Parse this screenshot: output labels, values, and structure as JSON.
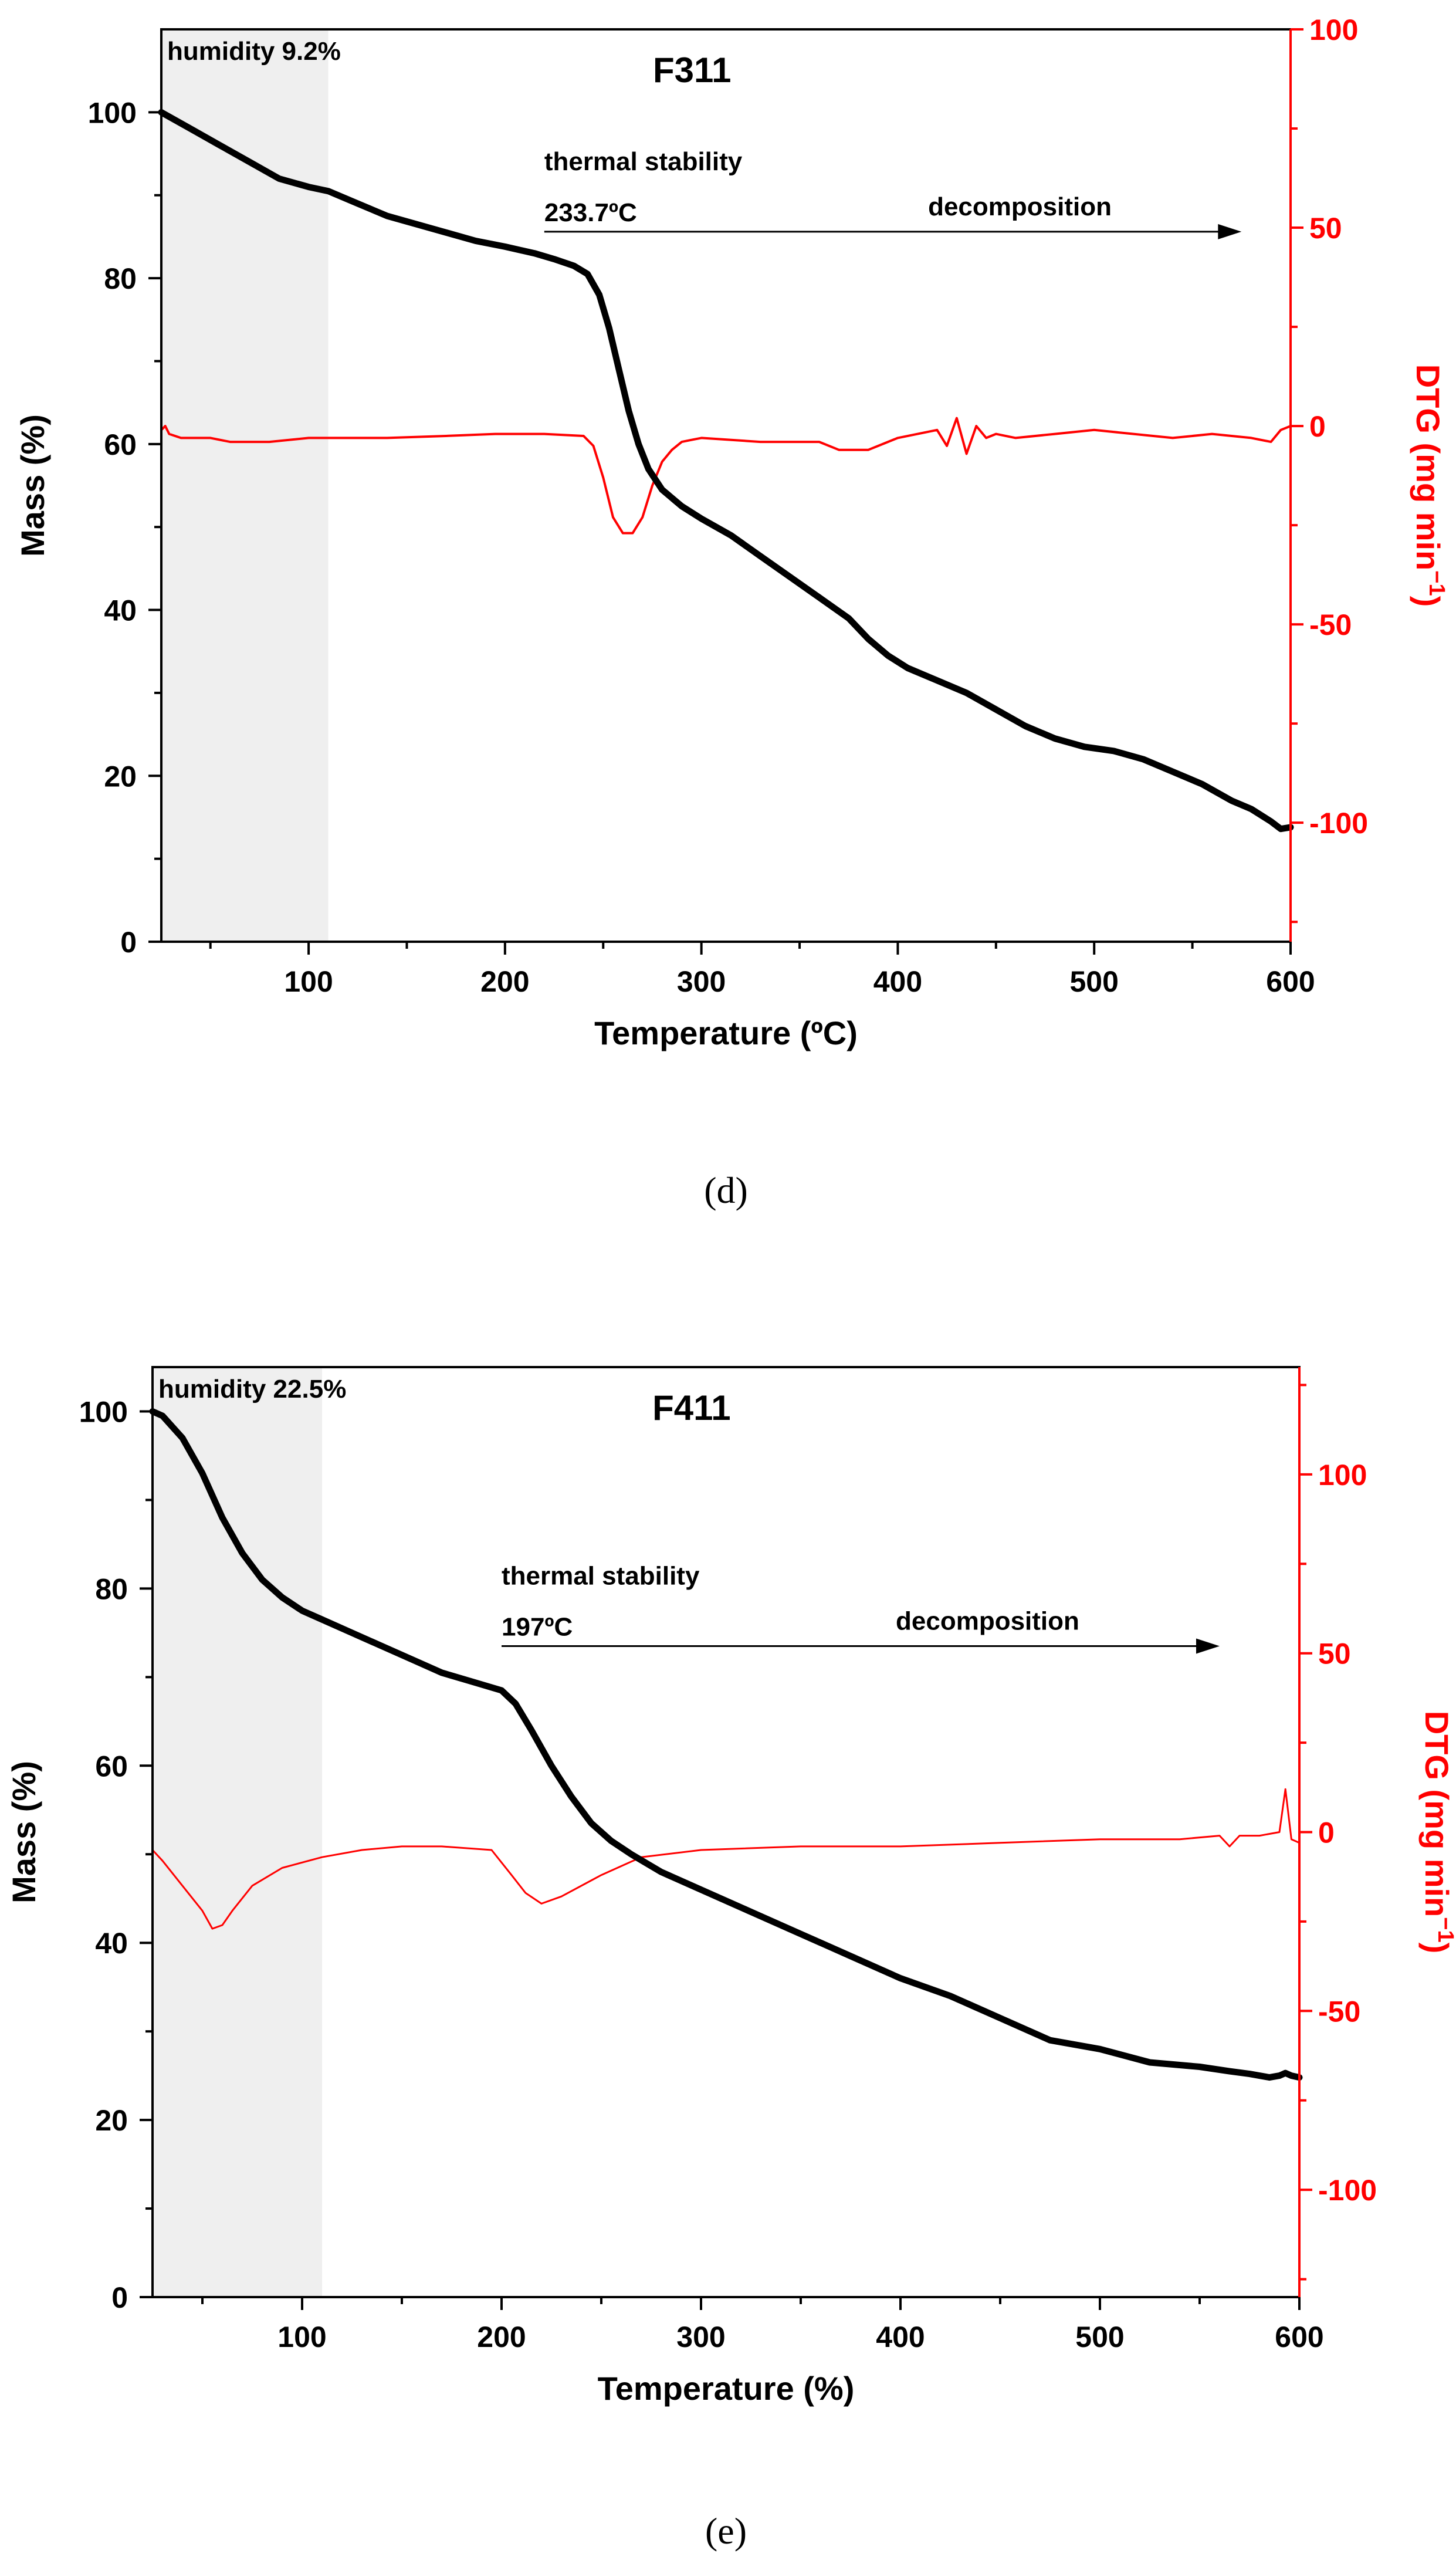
{
  "colors": {
    "mass": "#000000",
    "dtg": "#ff0000",
    "humidity_band": "#efefef"
  },
  "chart_data": [
    {
      "type": "line",
      "panel": "d",
      "title": "F311",
      "caption": "(d)",
      "xlabel": "Temperature (ºC)",
      "ylabel": "Mass (%)",
      "y2label": "DTG (mg min",
      "y2label_sup": "−1",
      "y2label_close": ")",
      "xlim": [
        25,
        600
      ],
      "ylim": [
        0,
        110
      ],
      "y2lim": [
        -130,
        100
      ],
      "xticks": [
        100,
        200,
        300,
        400,
        500,
        600
      ],
      "xminor": [
        50,
        100,
        150,
        200,
        250,
        300,
        350,
        400,
        450,
        500,
        550,
        600
      ],
      "yticks": [
        0,
        20,
        40,
        60,
        80,
        100
      ],
      "yminor": [
        10,
        30,
        50,
        70,
        90
      ],
      "y2ticks": [
        -100,
        -50,
        0,
        50,
        100
      ],
      "y2minor": [
        -125,
        -75,
        -25,
        25,
        75
      ],
      "humidity_band": {
        "from": 25,
        "to": 110,
        "label": "humidity 9.2%"
      },
      "annotations": {
        "stability_label": "thermal stability",
        "onset_label": "233.7ºC",
        "decomposition_label": "decomposition",
        "arrow_from": 220,
        "arrow_to": 575,
        "arrow_y": 85.6
      },
      "series": [
        {
          "name": "Mass",
          "axis": "left",
          "x": [
            25,
            40,
            55,
            70,
            85,
            100,
            110,
            125,
            140,
            155,
            170,
            185,
            200,
            215,
            225,
            235,
            242,
            248,
            253,
            258,
            263,
            268,
            273,
            280,
            290,
            300,
            315,
            330,
            345,
            360,
            375,
            385,
            395,
            405,
            420,
            435,
            450,
            465,
            480,
            495,
            510,
            525,
            540,
            555,
            570,
            580,
            590,
            595,
            600
          ],
          "values": [
            100,
            98,
            96,
            94,
            92,
            91,
            90.5,
            89,
            87.5,
            86.5,
            85.5,
            84.5,
            83.8,
            83,
            82.3,
            81.5,
            80.5,
            78,
            74,
            69,
            64,
            60,
            57,
            54.5,
            52.5,
            51,
            49,
            46.5,
            44,
            41.5,
            39,
            36.5,
            34.5,
            33,
            31.5,
            30,
            28,
            26,
            24.5,
            23.5,
            23,
            22,
            20.5,
            19,
            17,
            16,
            14.5,
            13.6,
            13.8
          ]
        },
        {
          "name": "DTG",
          "axis": "right",
          "x": [
            25,
            27,
            29,
            35,
            50,
            60,
            80,
            100,
            115,
            140,
            170,
            195,
            220,
            240,
            245,
            250,
            255,
            260,
            265,
            270,
            275,
            280,
            285,
            290,
            295,
            300,
            330,
            360,
            370,
            385,
            400,
            420,
            425,
            430,
            435,
            440,
            445,
            450,
            460,
            480,
            500,
            520,
            540,
            560,
            580,
            590,
            595,
            600
          ],
          "values": [
            -1,
            0,
            -2,
            -3,
            -3,
            -4,
            -4,
            -3,
            -3,
            -3,
            -2.5,
            -2,
            -2,
            -2.5,
            -5,
            -13,
            -23,
            -27,
            -27,
            -23,
            -15,
            -9,
            -6,
            -4,
            -3.5,
            -3,
            -4,
            -4,
            -6,
            -6,
            -3,
            -1,
            -5,
            2,
            -7,
            0,
            -3,
            -2,
            -3,
            -2,
            -1,
            -2,
            -3,
            -2,
            -3,
            -4,
            -1,
            0
          ]
        }
      ]
    },
    {
      "type": "line",
      "panel": "e",
      "title": "F411",
      "caption": "(e)",
      "xlabel": "Temperature (%)",
      "ylabel": "Mass (%)",
      "y2label": "DTG (mg min",
      "y2label_sup": "−1",
      "y2label_close": ")",
      "xlim": [
        25,
        600
      ],
      "ylim": [
        0,
        105
      ],
      "y2lim": [
        -130,
        130
      ],
      "xticks": [
        100,
        200,
        300,
        400,
        500,
        600
      ],
      "xminor": [
        50,
        100,
        150,
        200,
        250,
        300,
        350,
        400,
        450,
        500,
        550,
        600
      ],
      "yticks": [
        0,
        20,
        40,
        60,
        80,
        100
      ],
      "yminor": [
        10,
        30,
        50,
        70,
        90
      ],
      "y2ticks": [
        -100,
        -50,
        0,
        50,
        100
      ],
      "y2minor": [
        -125,
        -75,
        -25,
        25,
        75,
        125
      ],
      "humidity_band": {
        "from": 25,
        "to": 110,
        "label": "humidity 22.5%"
      },
      "annotations": {
        "stability_label": "thermal stability",
        "onset_label": "197ºC",
        "decomposition_label": "decomposition",
        "arrow_from": 200,
        "arrow_to": 560,
        "arrow_y": 73.5
      },
      "series": [
        {
          "name": "Mass",
          "axis": "left",
          "x": [
            25,
            30,
            40,
            50,
            60,
            70,
            80,
            90,
            100,
            110,
            125,
            140,
            155,
            170,
            185,
            200,
            207,
            215,
            225,
            235,
            245,
            255,
            265,
            280,
            300,
            325,
            350,
            375,
            400,
            425,
            450,
            475,
            500,
            525,
            550,
            565,
            575,
            585,
            590,
            593,
            596,
            600
          ],
          "values": [
            100,
            99.5,
            97,
            93,
            88,
            84,
            81,
            79,
            77.5,
            76.5,
            75,
            73.5,
            72,
            70.5,
            69.5,
            68.5,
            67,
            64,
            60,
            56.5,
            53.5,
            51.5,
            50,
            48,
            46,
            43.5,
            41,
            38.5,
            36,
            34,
            31.5,
            29,
            28,
            26.5,
            26,
            25.5,
            25.2,
            24.8,
            25,
            25.3,
            25,
            24.8
          ]
        },
        {
          "name": "DTG",
          "axis": "right",
          "x": [
            25,
            30,
            40,
            50,
            55,
            60,
            65,
            75,
            90,
            110,
            130,
            150,
            170,
            195,
            205,
            212,
            220,
            230,
            250,
            270,
            300,
            350,
            400,
            450,
            500,
            540,
            560,
            565,
            570,
            580,
            590,
            593,
            596,
            600
          ],
          "values": [
            -5,
            -8,
            -15,
            -22,
            -27,
            -26,
            -22,
            -15,
            -10,
            -7,
            -5,
            -4,
            -4,
            -5,
            -12,
            -17,
            -20,
            -18,
            -12,
            -7,
            -5,
            -4,
            -4,
            -3,
            -2,
            -2,
            -1,
            -4,
            -1,
            -1,
            0,
            12,
            -2,
            -3
          ]
        }
      ]
    }
  ]
}
